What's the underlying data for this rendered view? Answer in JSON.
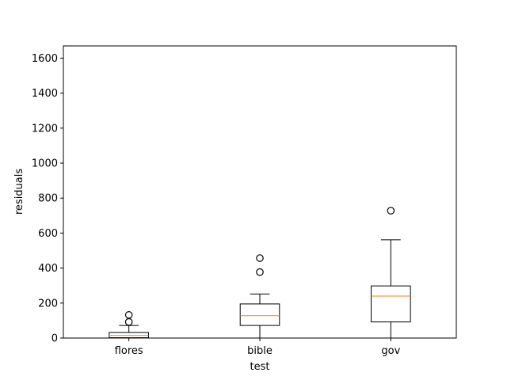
{
  "chart_data": {
    "type": "box",
    "xlabel": "test",
    "ylabel": "residuals",
    "ylim": [
      0,
      1670
    ],
    "yticks": [
      0,
      200,
      400,
      600,
      800,
      1000,
      1200,
      1400,
      1600
    ],
    "grid": false,
    "colors": {
      "box": "#000000",
      "median": "#ff7f0e",
      "background": "#ffffff"
    },
    "categories": [
      "flores",
      "bible",
      "gov"
    ],
    "boxes": [
      {
        "label": "flores",
        "whisker_low": 0,
        "q1": 2,
        "median": 15,
        "q3": 32,
        "whisker_high": 72,
        "outliers": [
          92,
          132
        ]
      },
      {
        "label": "bible",
        "whisker_low": 0,
        "q1": 72,
        "median": 128,
        "q3": 195,
        "whisker_high": 252,
        "outliers": [
          377,
          457
        ]
      },
      {
        "label": "gov",
        "whisker_low": 0,
        "q1": 92,
        "median": 240,
        "q3": 298,
        "whisker_high": 562,
        "outliers": [
          728
        ]
      }
    ]
  }
}
